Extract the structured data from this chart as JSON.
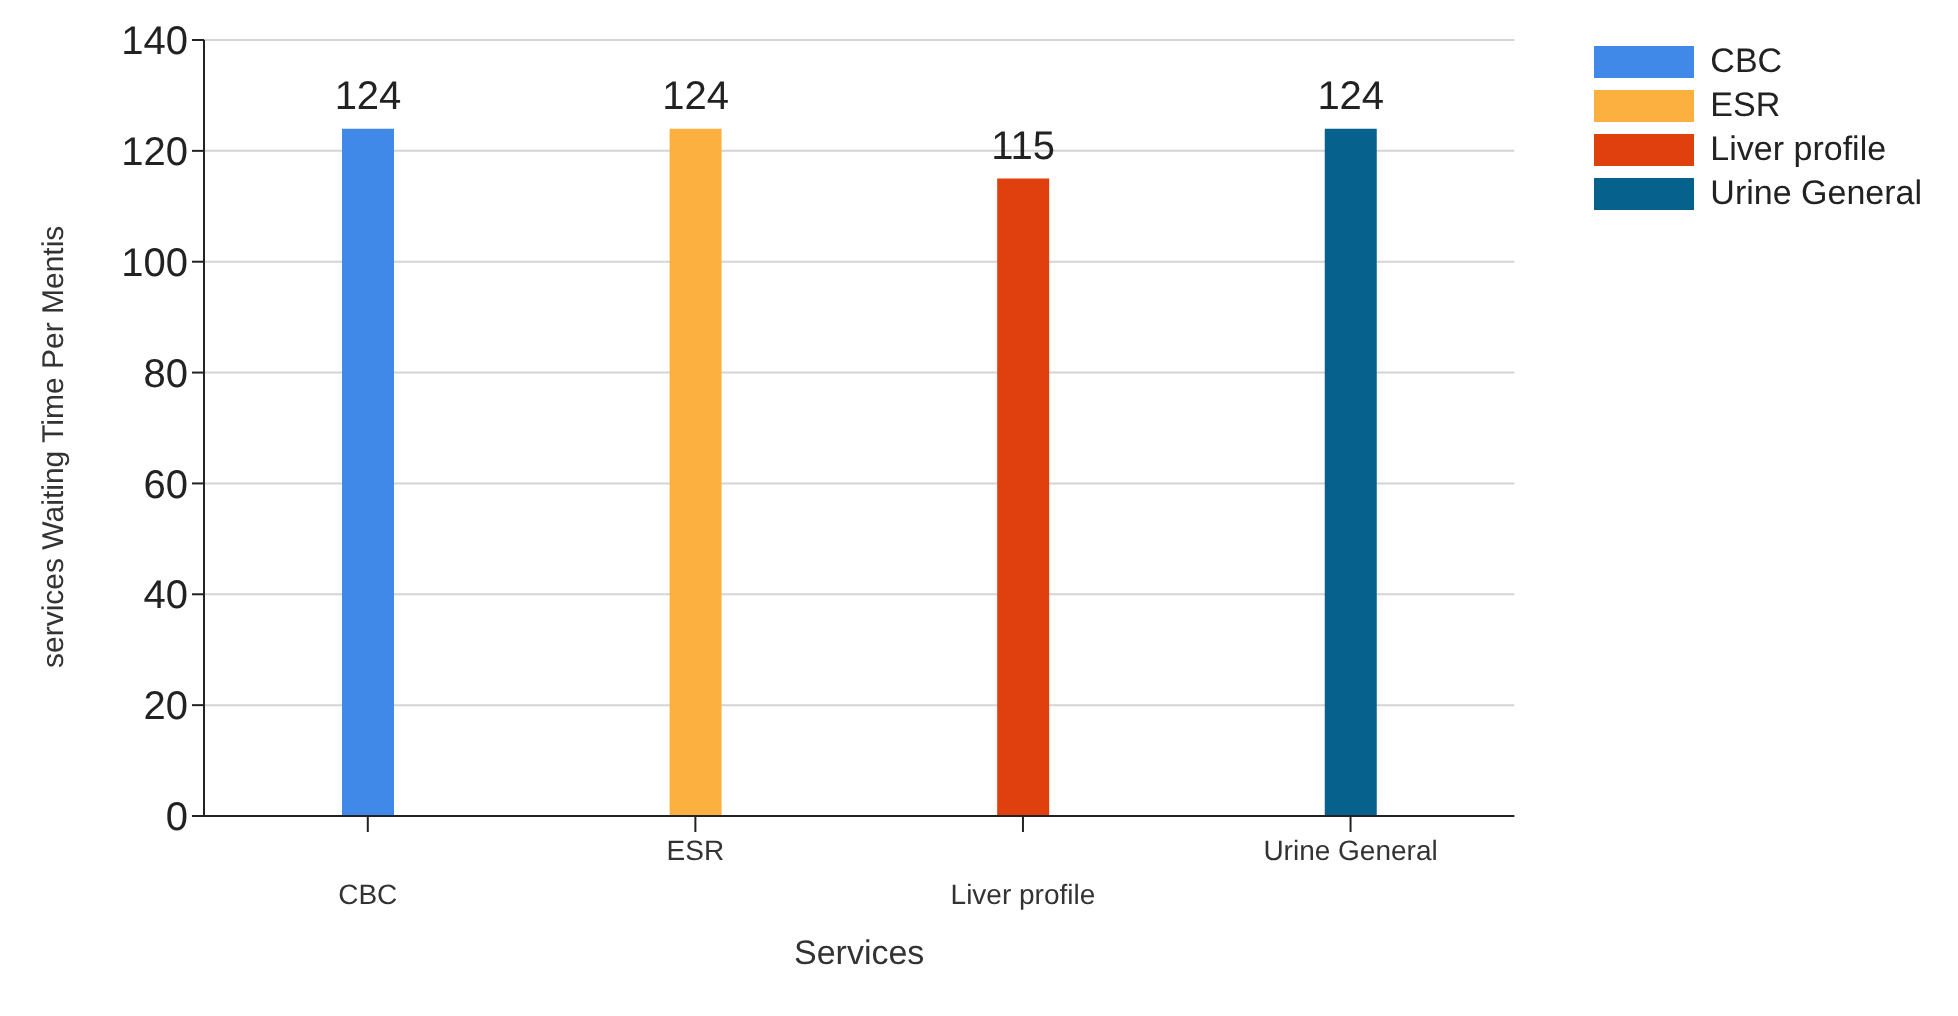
{
  "chart_data": {
    "type": "bar",
    "xlabel": "Services",
    "ylabel": "services Waiting Time Per Mentis",
    "categories": [
      "CBC",
      "ESR",
      "Liver profile",
      "Urine General"
    ],
    "series": [
      {
        "name": "CBC",
        "color": "#4189e8",
        "values": [
          124,
          null,
          null,
          null
        ]
      },
      {
        "name": "ESR",
        "color": "#fbb040",
        "values": [
          null,
          124,
          null,
          null
        ]
      },
      {
        "name": "Liver profile",
        "color": "#e0400e",
        "values": [
          null,
          null,
          115,
          null
        ]
      },
      {
        "name": "Urine General",
        "color": "#06628d",
        "values": [
          null,
          null,
          null,
          124
        ]
      }
    ],
    "ylim": [
      0,
      140
    ],
    "yticks": [
      0,
      20,
      40,
      60,
      80,
      100,
      120,
      140
    ],
    "grid": "y",
    "legend": "top right",
    "data_labels": true
  }
}
